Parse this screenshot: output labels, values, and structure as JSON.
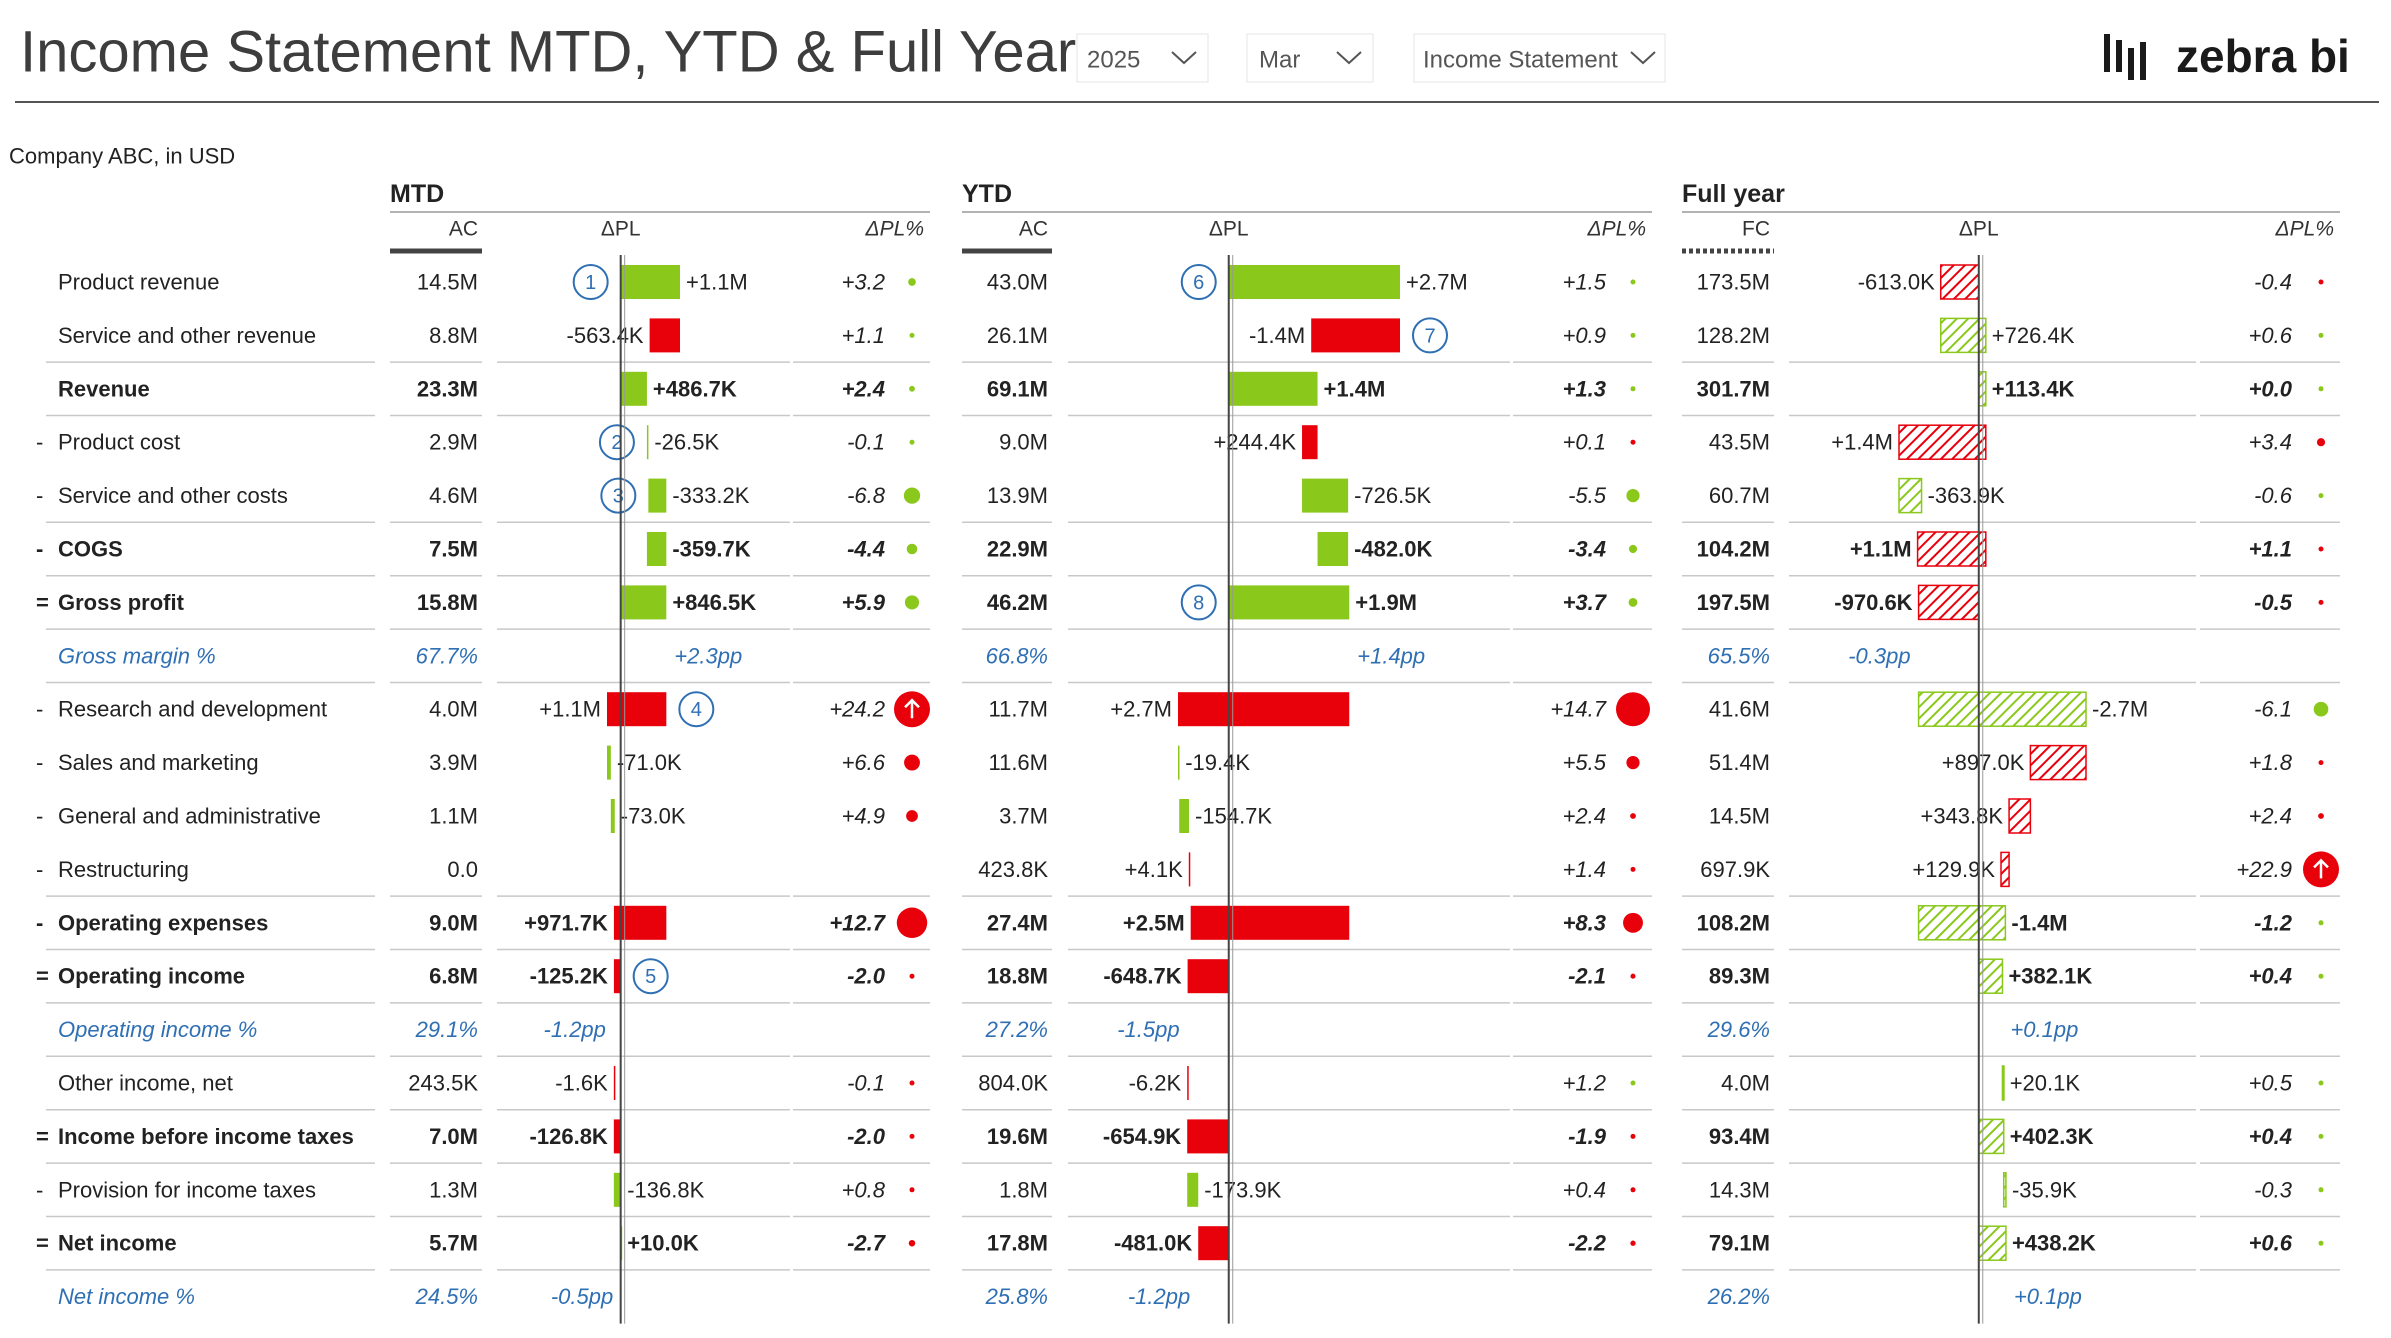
{
  "header": {
    "title": "Income Statement MTD, YTD & Full Year",
    "filters": {
      "year": "2025",
      "month": "Mar",
      "report": "Income Statement"
    },
    "logo": "zebra bi"
  },
  "subtitle": "Company ABC, in USD",
  "colors": {
    "positive": "#8ac81c",
    "negative": "#e8000b",
    "percent_row": "#2f6fb3",
    "note": "#2f6fb3"
  },
  "rows": [
    {
      "label": "Product revenue",
      "role": "item",
      "cost": false
    },
    {
      "label": "Service and other revenue",
      "role": "item",
      "cost": false
    },
    {
      "label": "Revenue",
      "role": "total",
      "cost": false
    },
    {
      "prefix": "-",
      "label": "Product cost",
      "role": "item",
      "cost": true
    },
    {
      "prefix": "-",
      "label": "Service and other costs",
      "role": "item",
      "cost": true
    },
    {
      "prefix": "-",
      "label": "COGS",
      "role": "subtotal",
      "cost": true
    },
    {
      "prefix": "=",
      "label": "Gross profit",
      "role": "total",
      "cost": false
    },
    {
      "label": "Gross margin %",
      "role": "pct",
      "cost": false
    },
    {
      "prefix": "-",
      "label": "Research and development",
      "role": "item",
      "cost": true
    },
    {
      "prefix": "-",
      "label": "Sales and marketing",
      "role": "item",
      "cost": true
    },
    {
      "prefix": "-",
      "label": "General and administrative",
      "role": "item",
      "cost": true
    },
    {
      "prefix": "-",
      "label": "Restructuring",
      "role": "item",
      "cost": true
    },
    {
      "prefix": "-",
      "label": "Operating expenses",
      "role": "subtotal",
      "cost": true
    },
    {
      "prefix": "=",
      "label": "Operating income",
      "role": "total",
      "cost": false
    },
    {
      "label": "Operating income %",
      "role": "pct",
      "cost": false
    },
    {
      "label": "Other income, net",
      "role": "item",
      "cost": false
    },
    {
      "prefix": "=",
      "label": "Income before income taxes",
      "role": "total",
      "cost": false
    },
    {
      "prefix": "-",
      "label": "Provision for income taxes",
      "role": "item",
      "cost": true
    },
    {
      "prefix": "=",
      "label": "Net income",
      "role": "total",
      "cost": false
    },
    {
      "label": "Net income %",
      "role": "pct",
      "cost": false
    }
  ],
  "sections": [
    {
      "title": "MTD",
      "headers": {
        "ac": "AC",
        "dpl": "ΔPL",
        "pct": "ΔPL%"
      },
      "hatched": false,
      "cells": [
        {
          "ac": "14.5M",
          "dpl": 1100000,
          "dpl_label": "+1.1M",
          "pct": 3.2,
          "pct_label": "+3.2",
          "note": "1"
        },
        {
          "ac": "8.8M",
          "dpl": -563400,
          "dpl_label": "-563.4K",
          "pct": 1.1,
          "pct_label": "+1.1"
        },
        {
          "ac": "23.3M",
          "dpl": 486700,
          "dpl_label": "+486.7K",
          "pct": 2.4,
          "pct_label": "+2.4"
        },
        {
          "ac": "2.9M",
          "dpl": -26500,
          "dpl_label": "-26.5K",
          "pct": -0.1,
          "pct_label": "-0.1",
          "note": "2"
        },
        {
          "ac": "4.6M",
          "dpl": -333200,
          "dpl_label": "-333.2K",
          "pct": -6.8,
          "pct_label": "-6.8",
          "note": "3"
        },
        {
          "ac": "7.5M",
          "dpl": -359700,
          "dpl_label": "-359.7K",
          "pct": -4.4,
          "pct_label": "-4.4"
        },
        {
          "ac": "15.8M",
          "dpl": 846500,
          "dpl_label": "+846.5K",
          "pct": 5.9,
          "pct_label": "+5.9"
        },
        {
          "ac": "67.7%",
          "dpl_label": "+2.3pp"
        },
        {
          "ac": "4.0M",
          "dpl": 1100000,
          "dpl_label": "+1.1M",
          "pct": 24.2,
          "pct_label": "+24.2",
          "note": "4"
        },
        {
          "ac": "3.9M",
          "dpl": -71000,
          "dpl_label": "-71.0K",
          "pct": 6.6,
          "pct_label": "+6.6"
        },
        {
          "ac": "1.1M",
          "dpl": -73000,
          "dpl_label": "-73.0K",
          "pct": 4.9,
          "pct_label": "+4.9"
        },
        {
          "ac": "0.0"
        },
        {
          "ac": "9.0M",
          "dpl": 971700,
          "dpl_label": "+971.7K",
          "pct": 12.7,
          "pct_label": "+12.7"
        },
        {
          "ac": "6.8M",
          "dpl": -125200,
          "dpl_label": "-125.2K",
          "pct": -2.0,
          "pct_label": "-2.0",
          "note": "5"
        },
        {
          "ac": "29.1%",
          "dpl_label": "-1.2pp"
        },
        {
          "ac": "243.5K",
          "dpl": -1600,
          "dpl_label": "-1.6K",
          "pct": -0.1,
          "pct_label": "-0.1"
        },
        {
          "ac": "7.0M",
          "dpl": -126800,
          "dpl_label": "-126.8K",
          "pct": -2.0,
          "pct_label": "-2.0"
        },
        {
          "ac": "1.3M",
          "dpl": -136800,
          "dpl_label": "-136.8K",
          "pct": 0.8,
          "pct_label": "+0.8"
        },
        {
          "ac": "5.7M",
          "dpl": 10000,
          "dpl_label": "+10.0K",
          "pct": -2.7,
          "pct_label": "-2.7"
        },
        {
          "ac": "24.5%",
          "dpl_label": "-0.5pp"
        }
      ]
    },
    {
      "title": "YTD",
      "headers": {
        "ac": "AC",
        "dpl": "ΔPL",
        "pct": "ΔPL%"
      },
      "hatched": false,
      "cells": [
        {
          "ac": "43.0M",
          "dpl": 2700000,
          "dpl_label": "+2.7M",
          "pct": 1.5,
          "pct_label": "+1.5",
          "note": "6"
        },
        {
          "ac": "26.1M",
          "dpl": -1400000,
          "dpl_label": "-1.4M",
          "pct": 0.9,
          "pct_label": "+0.9",
          "note": "7"
        },
        {
          "ac": "69.1M",
          "dpl": 1400000,
          "dpl_label": "+1.4M",
          "pct": 1.3,
          "pct_label": "+1.3"
        },
        {
          "ac": "9.0M",
          "dpl": 244400,
          "dpl_label": "+244.4K",
          "pct": 0.1,
          "pct_label": "+0.1"
        },
        {
          "ac": "13.9M",
          "dpl": -726500,
          "dpl_label": "-726.5K",
          "pct": -5.5,
          "pct_label": "-5.5"
        },
        {
          "ac": "22.9M",
          "dpl": -482000,
          "dpl_label": "-482.0K",
          "pct": -3.4,
          "pct_label": "-3.4"
        },
        {
          "ac": "46.2M",
          "dpl": 1900000,
          "dpl_label": "+1.9M",
          "pct": 3.7,
          "pct_label": "+3.7",
          "note": "8"
        },
        {
          "ac": "66.8%",
          "dpl_label": "+1.4pp"
        },
        {
          "ac": "11.7M",
          "dpl": 2700000,
          "dpl_label": "+2.7M",
          "pct": 14.7,
          "pct_label": "+14.7"
        },
        {
          "ac": "11.6M",
          "dpl": -19400,
          "dpl_label": "-19.4K",
          "pct": 5.5,
          "pct_label": "+5.5"
        },
        {
          "ac": "3.7M",
          "dpl": -154700,
          "dpl_label": "-154.7K",
          "pct": 2.4,
          "pct_label": "+2.4"
        },
        {
          "ac": "423.8K",
          "dpl": 4100,
          "dpl_label": "+4.1K",
          "pct": 1.4,
          "pct_label": "+1.4"
        },
        {
          "ac": "27.4M",
          "dpl": 2500000,
          "dpl_label": "+2.5M",
          "pct": 8.3,
          "pct_label": "+8.3"
        },
        {
          "ac": "18.8M",
          "dpl": -648700,
          "dpl_label": "-648.7K",
          "pct": -2.1,
          "pct_label": "-2.1"
        },
        {
          "ac": "27.2%",
          "dpl_label": "-1.5pp"
        },
        {
          "ac": "804.0K",
          "dpl": -6200,
          "dpl_label": "-6.2K",
          "pct": 1.2,
          "pct_label": "+1.2"
        },
        {
          "ac": "19.6M",
          "dpl": -654900,
          "dpl_label": "-654.9K",
          "pct": -1.9,
          "pct_label": "-1.9"
        },
        {
          "ac": "1.8M",
          "dpl": -173900,
          "dpl_label": "-173.9K",
          "pct": 0.4,
          "pct_label": "+0.4"
        },
        {
          "ac": "17.8M",
          "dpl": -481000,
          "dpl_label": "-481.0K",
          "pct": -2.2,
          "pct_label": "-2.2"
        },
        {
          "ac": "25.8%",
          "dpl_label": "-1.2pp"
        }
      ]
    },
    {
      "title": "Full year",
      "headers": {
        "ac": "FC",
        "dpl": "ΔPL",
        "pct": "ΔPL%"
      },
      "hatched": true,
      "cells": [
        {
          "ac": "173.5M",
          "dpl": -613000,
          "dpl_label": "-613.0K",
          "pct": -0.4,
          "pct_label": "-0.4"
        },
        {
          "ac": "128.2M",
          "dpl": 726400,
          "dpl_label": "+726.4K",
          "pct": 0.6,
          "pct_label": "+0.6"
        },
        {
          "ac": "301.7M",
          "dpl": 113400,
          "dpl_label": "+113.4K",
          "pct": 0.0,
          "pct_label": "+0.0"
        },
        {
          "ac": "43.5M",
          "dpl": 1400000,
          "dpl_label": "+1.4M",
          "pct": 3.4,
          "pct_label": "+3.4"
        },
        {
          "ac": "60.7M",
          "dpl": -363900,
          "dpl_label": "-363.9K",
          "pct": -0.6,
          "pct_label": "-0.6"
        },
        {
          "ac": "104.2M",
          "dpl": 1100000,
          "dpl_label": "+1.1M",
          "pct": 1.1,
          "pct_label": "+1.1"
        },
        {
          "ac": "197.5M",
          "dpl": -970600,
          "dpl_label": "-970.6K",
          "pct": -0.5,
          "pct_label": "-0.5"
        },
        {
          "ac": "65.5%",
          "dpl_label": "-0.3pp"
        },
        {
          "ac": "41.6M",
          "dpl": -2700000,
          "dpl_label": "-2.7M",
          "pct": -6.1,
          "pct_label": "-6.1"
        },
        {
          "ac": "51.4M",
          "dpl": 897000,
          "dpl_label": "+897.0K",
          "pct": 1.8,
          "pct_label": "+1.8"
        },
        {
          "ac": "14.5M",
          "dpl": 343800,
          "dpl_label": "+343.8K",
          "pct": 2.4,
          "pct_label": "+2.4"
        },
        {
          "ac": "697.9K",
          "dpl": 129900,
          "dpl_label": "+129.9K",
          "pct": 22.9,
          "pct_label": "+22.9"
        },
        {
          "ac": "108.2M",
          "dpl": -1400000,
          "dpl_label": "-1.4M",
          "pct": -1.2,
          "pct_label": "-1.2"
        },
        {
          "ac": "89.3M",
          "dpl": 382100,
          "dpl_label": "+382.1K",
          "pct": 0.4,
          "pct_label": "+0.4"
        },
        {
          "ac": "29.6%",
          "dpl_label": "+0.1pp"
        },
        {
          "ac": "4.0M",
          "dpl": 20100,
          "dpl_label": "+20.1K",
          "pct": 0.5,
          "pct_label": "+0.5"
        },
        {
          "ac": "93.4M",
          "dpl": 402300,
          "dpl_label": "+402.3K",
          "pct": 0.4,
          "pct_label": "+0.4"
        },
        {
          "ac": "14.3M",
          "dpl": -35900,
          "dpl_label": "-35.9K",
          "pct": -0.3,
          "pct_label": "-0.3"
        },
        {
          "ac": "79.1M",
          "dpl": 438200,
          "dpl_label": "+438.2K",
          "pct": 0.6,
          "pct_label": "+0.6"
        },
        {
          "ac": "26.2%",
          "dpl_label": "+0.1pp"
        }
      ]
    }
  ]
}
